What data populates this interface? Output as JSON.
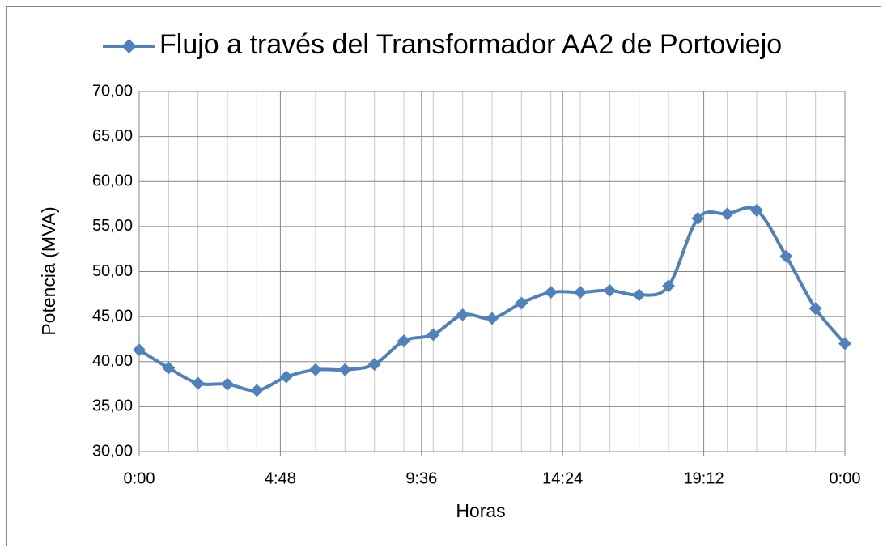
{
  "chart_data": {
    "type": "line",
    "x_label": "Horas",
    "y_label": "Potencia (MVA)",
    "x": [
      0,
      1,
      2,
      3,
      4,
      5,
      6,
      7,
      8,
      9,
      10,
      11,
      12,
      13,
      14,
      15,
      16,
      17,
      18,
      19,
      20,
      21,
      22,
      23,
      24
    ],
    "series": [
      {
        "name": "Flujo a través del Transformador AA2 de Portoviejo",
        "color": "#4f81bd",
        "values": [
          41.3,
          39.3,
          37.6,
          37.5,
          36.8,
          38.3,
          39.1,
          39.1,
          39.7,
          42.3,
          43.0,
          45.2,
          44.8,
          46.5,
          47.7,
          47.7,
          47.9,
          47.4,
          48.4,
          55.9,
          56.4,
          56.8,
          51.7,
          45.9,
          42.0
        ]
      }
    ],
    "xlim": [
      0,
      24
    ],
    "xticks": [
      {
        "value": 0,
        "label": "0:00"
      },
      {
        "value": 4.8,
        "label": "4:48"
      },
      {
        "value": 9.6,
        "label": "9:36"
      },
      {
        "value": 14.4,
        "label": "14:24"
      },
      {
        "value": 19.2,
        "label": "19:12"
      },
      {
        "value": 24,
        "label": "0:00"
      }
    ],
    "ylim": [
      30,
      70
    ],
    "yticks": [
      {
        "value": 30,
        "label": "30,00"
      },
      {
        "value": 35,
        "label": "35,00"
      },
      {
        "value": 40,
        "label": "40,00"
      },
      {
        "value": 45,
        "label": "45,00"
      },
      {
        "value": 50,
        "label": "50,00"
      },
      {
        "value": 55,
        "label": "55,00"
      },
      {
        "value": 60,
        "label": "60,00"
      },
      {
        "value": 65,
        "label": "65,00"
      },
      {
        "value": 70,
        "label": "70,00"
      }
    ],
    "grid": true
  }
}
